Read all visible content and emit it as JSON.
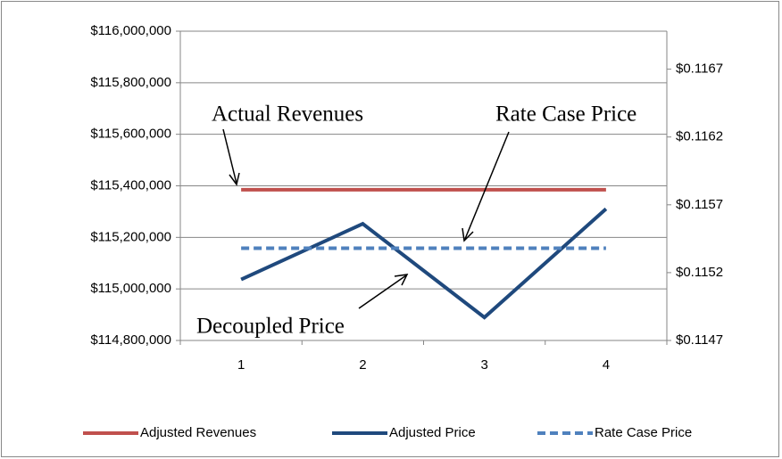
{
  "chart_data": {
    "type": "line",
    "categories": [
      "1",
      "2",
      "3",
      "4"
    ],
    "series": [
      {
        "name": "Adjusted Revenues",
        "color": "#c0504d",
        "values": [
          115385000,
          115385000,
          115385000,
          115385000
        ]
      },
      {
        "name": "Adjusted Price",
        "color": "#1f497d",
        "axis": "y2",
        "values": [
          0.11515,
          0.11556,
          0.11487,
          0.11567
        ]
      },
      {
        "name": "Rate Case Price",
        "color": "#4f81bd",
        "axis": "y2",
        "dashed": true,
        "values": [
          0.11538,
          0.11538,
          0.11538,
          0.11538
        ]
      }
    ],
    "ylim": [
      114800000,
      116000000
    ],
    "yticks": [
      {
        "value": 114800000,
        "label": "$114,800,000"
      },
      {
        "value": 115000000,
        "label": "$115,000,000"
      },
      {
        "value": 115200000,
        "label": "$115,200,000"
      },
      {
        "value": 115400000,
        "label": "$115,400,000"
      },
      {
        "value": 115600000,
        "label": "$115,600,000"
      },
      {
        "value": 115800000,
        "label": "$115,800,000"
      },
      {
        "value": 116000000,
        "label": "$116,000,000"
      }
    ],
    "y2lim": [
      0.1147,
      0.11698
    ],
    "y2ticks": [
      {
        "value": 0.1147,
        "label": "$0.1147"
      },
      {
        "value": 0.1152,
        "label": "$0.1152"
      },
      {
        "value": 0.1157,
        "label": "$0.1157"
      },
      {
        "value": 0.1162,
        "label": "$0.1162"
      },
      {
        "value": 0.1167,
        "label": "$0.1167"
      }
    ],
    "grid": true,
    "legend": "bottom",
    "annotations": [
      "Actual Revenues",
      "Rate Case Price",
      "Decoupled Price"
    ]
  }
}
